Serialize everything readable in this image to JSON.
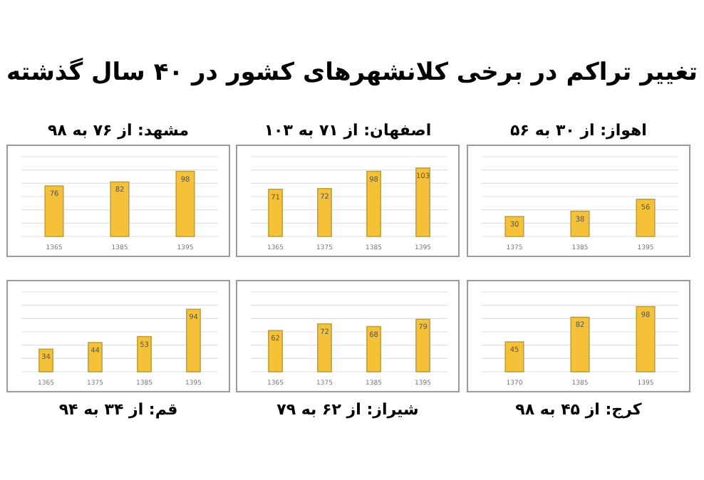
{
  "chart_data": [
    {
      "type": "other",
      "title": "تغییر تراکم در برخی کلانشهرهای کشور در ۴۰ سال گذشته"
    },
    {
      "type": "bar",
      "title": "مشهد: از ۷۶ به ۹۸",
      "categories": [
        "1365",
        "1385",
        "1395"
      ],
      "values": [
        76,
        82,
        98
      ],
      "color": "#f5c138",
      "ylim": [
        0,
        120
      ],
      "yticks": [
        {
          "value": 0,
          "label": null
        },
        {
          "value": 20,
          "label": null
        },
        {
          "value": 40,
          "label": null
        },
        {
          "value": 60,
          "label": null
        },
        {
          "value": 80,
          "label": null
        },
        {
          "value": 100,
          "label": null
        },
        {
          "value": 120,
          "label": null
        }
      ],
      "grid": "y",
      "data_labels": true,
      "tick_labels": "x"
    },
    {
      "type": "bar",
      "title": "اصفهان: از ۷۱ به ۱۰۳",
      "categories": [
        "1365",
        "1375",
        "1385",
        "1395"
      ],
      "values": [
        71,
        72,
        98,
        103
      ],
      "color": "#f5c138",
      "ylim": [
        0,
        120
      ],
      "yticks": [
        {
          "value": 0,
          "label": null
        },
        {
          "value": 20,
          "label": null
        },
        {
          "value": 40,
          "label": null
        },
        {
          "value": 60,
          "label": null
        },
        {
          "value": 80,
          "label": null
        },
        {
          "value": 100,
          "label": null
        },
        {
          "value": 120,
          "label": null
        }
      ],
      "grid": "y",
      "data_labels": true,
      "tick_labels": "x"
    },
    {
      "type": "bar",
      "title": "اهواز: از ۳۰ به ۵۶",
      "categories": [
        "1375",
        "1385",
        "1395"
      ],
      "values": [
        30,
        38,
        56
      ],
      "color": "#f5c138",
      "ylim": [
        0,
        120
      ],
      "yticks": [
        {
          "value": 0,
          "label": null
        },
        {
          "value": 20,
          "label": null
        },
        {
          "value": 40,
          "label": null
        },
        {
          "value": 60,
          "label": null
        },
        {
          "value": 80,
          "label": null
        },
        {
          "value": 100,
          "label": null
        },
        {
          "value": 120,
          "label": null
        }
      ],
      "grid": "y",
      "data_labels": true,
      "tick_labels": "x"
    },
    {
      "type": "bar",
      "title": "قم: از ۳۴ به ۹۴",
      "categories": [
        "1365",
        "1375",
        "1385",
        "1395"
      ],
      "values": [
        34,
        44,
        53,
        94
      ],
      "color": "#f5c138",
      "ylim": [
        0,
        120
      ],
      "yticks": [
        {
          "value": 0,
          "label": null
        },
        {
          "value": 20,
          "label": null
        },
        {
          "value": 40,
          "label": null
        },
        {
          "value": 60,
          "label": null
        },
        {
          "value": 80,
          "label": null
        },
        {
          "value": 100,
          "label": null
        },
        {
          "value": 120,
          "label": null
        }
      ],
      "grid": "y",
      "data_labels": true,
      "tick_labels": "x"
    },
    {
      "type": "bar",
      "title": "شیراز: از ۶۲ به ۷۹",
      "categories": [
        "1365",
        "1375",
        "1385",
        "1395"
      ],
      "values": [
        62,
        72,
        68,
        79
      ],
      "color": "#f5c138",
      "ylim": [
        0,
        120
      ],
      "yticks": [
        {
          "value": 0,
          "label": null
        },
        {
          "value": 20,
          "label": null
        },
        {
          "value": 40,
          "label": null
        },
        {
          "value": 60,
          "label": null
        },
        {
          "value": 80,
          "label": null
        },
        {
          "value": 100,
          "label": null
        },
        {
          "value": 120,
          "label": null
        }
      ],
      "grid": "y",
      "data_labels": true,
      "tick_labels": "x"
    },
    {
      "type": "bar",
      "title": "کرج: از ۴۵ به ۹۸",
      "categories": [
        "1370",
        "1385",
        "1395"
      ],
      "values": [
        45,
        82,
        98
      ],
      "color": "#f5c138",
      "ylim": [
        0,
        120
      ],
      "yticks": [
        {
          "value": 0,
          "label": null
        },
        {
          "value": 20,
          "label": null
        },
        {
          "value": 40,
          "label": null
        },
        {
          "value": 60,
          "label": null
        },
        {
          "value": 80,
          "label": null
        },
        {
          "value": 100,
          "label": null
        },
        {
          "value": 120,
          "label": null
        }
      ],
      "grid": "y",
      "data_labels": true,
      "tick_labels": "x"
    }
  ]
}
